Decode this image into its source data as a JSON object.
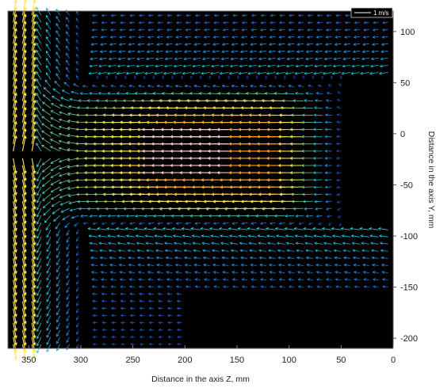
{
  "chart_data": {
    "type": "vector-field",
    "xlabel": "Distance in the axis Z, mm",
    "ylabel": "Distance in the axis Y, mm",
    "xlim": [
      370,
      0
    ],
    "ylim": [
      -210,
      120
    ],
    "xticks": [
      350,
      300,
      250,
      200,
      150,
      100,
      50,
      0
    ],
    "yticks": [
      100,
      50,
      0,
      -50,
      -100,
      -150,
      -200
    ],
    "x_reversed": true,
    "grid": false,
    "background": "#000000",
    "legend": {
      "label": "1 m/s",
      "position": "top-right",
      "reference_speed": 1
    },
    "flow_direction": "from Z≈0 toward Z≈370 (pointing left), jet core near Y≈-20, recirculation near Z≈300–370",
    "jet": {
      "z_start": 45,
      "z_end": 330,
      "y_center": -20,
      "half_width": 70,
      "peak_speed": 1.3,
      "core_region": {
        "z": [
          145,
          225
        ],
        "y": [
          -45,
          10
        ]
      }
    },
    "colormap": [
      "#1a237e",
      "#1e88e5",
      "#26c6da",
      "#9ccc65",
      "#ffee58",
      "#ffa726",
      "#e53935",
      "#ffffff"
    ]
  }
}
